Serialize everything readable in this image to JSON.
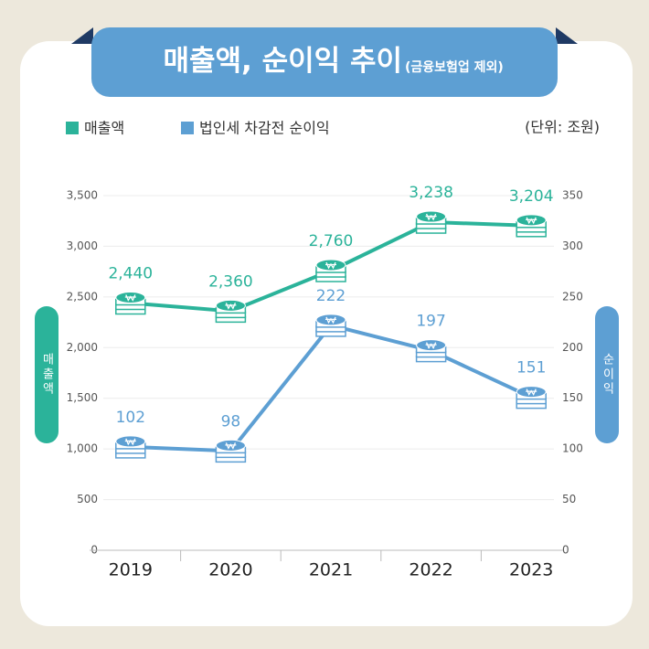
{
  "chart_data": {
    "type": "line",
    "title": "매출액, 순이익 추이",
    "subtitle": "(금융보험업 제외)",
    "unit": "(단위: 조원)",
    "ylabel": "매출액",
    "y2label": "순이익",
    "categories": [
      "2019",
      "2020",
      "2021",
      "2022",
      "2023"
    ],
    "series": [
      {
        "name": "매출액",
        "color": "#2bb39a",
        "values": [
          2440,
          2360,
          2760,
          3238,
          3204
        ],
        "value_labels": [
          "2,440",
          "2,360",
          "2,760",
          "3,238",
          "3,204"
        ]
      },
      {
        "name": "법인세 차감전 순이익",
        "color": "#5d9fd3",
        "axis": "y2",
        "values": [
          102,
          98,
          222,
          197,
          151
        ]
      }
    ],
    "ylim": [
      0,
      3500
    ],
    "yticks": [
      0,
      500,
      {
        "value": 1000,
        "label": "1,000"
      },
      {
        "value": 1500,
        "label": "1,500"
      },
      {
        "value": 2000,
        "label": "2,000"
      },
      {
        "value": 2500,
        "label": "2,500"
      },
      {
        "value": 3000,
        "label": "3,000"
      },
      {
        "value": 3500,
        "label": "3,500"
      }
    ],
    "y2lim": [
      0,
      350
    ],
    "y2ticks": [
      0,
      50,
      100,
      150,
      200,
      250,
      300,
      350
    ],
    "grid": true
  }
}
